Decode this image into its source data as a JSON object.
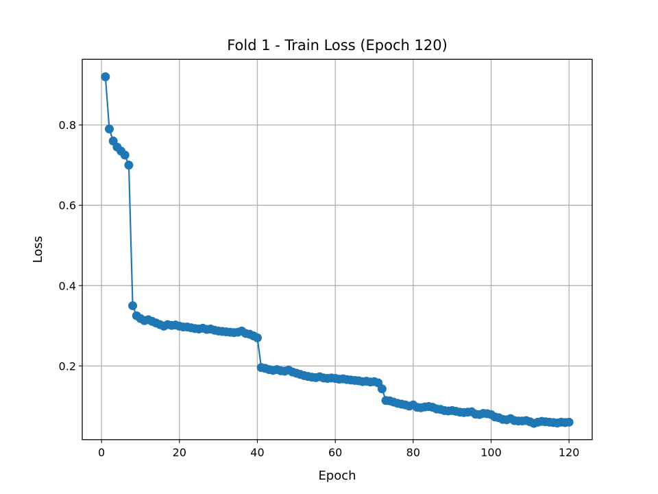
{
  "chart_data": {
    "type": "line",
    "title": "Fold 1 - Train Loss (Epoch 120)",
    "xlabel": "Epoch",
    "ylabel": "Loss",
    "xlim": [
      -4.95,
      125.95
    ],
    "ylim": [
      0.0165,
      0.9635
    ],
    "x_ticks": [
      0,
      20,
      40,
      60,
      80,
      100,
      120
    ],
    "y_ticks": [
      0.2,
      0.4,
      0.6,
      0.8
    ],
    "grid": true,
    "legend": "none",
    "marker": "circle",
    "color": "#1f77b4",
    "series": [
      {
        "x": [
          1,
          2,
          3,
          4,
          5,
          6,
          7,
          8,
          9,
          10,
          11,
          12,
          13,
          14,
          15,
          16,
          17,
          18,
          19,
          20,
          21,
          22,
          23,
          24,
          25,
          26,
          27,
          28,
          29,
          30,
          31,
          32,
          33,
          34,
          35,
          36,
          37,
          38,
          39,
          40,
          41,
          42,
          43,
          44,
          45,
          46,
          47,
          48,
          49,
          50,
          51,
          52,
          53,
          54,
          55,
          56,
          57,
          58,
          59,
          60,
          61,
          62,
          63,
          64,
          65,
          66,
          67,
          68,
          69,
          70,
          71,
          72,
          73,
          74,
          75,
          76,
          77,
          78,
          79,
          80,
          81,
          82,
          83,
          84,
          85,
          86,
          87,
          88,
          89,
          90,
          91,
          92,
          93,
          94,
          95,
          96,
          97,
          98,
          99,
          100,
          101,
          102,
          103,
          104,
          105,
          106,
          107,
          108,
          109,
          110,
          111,
          112,
          113,
          114,
          115,
          116,
          117,
          118,
          119,
          120
        ],
        "values": [
          0.92,
          0.79,
          0.76,
          0.745,
          0.735,
          0.725,
          0.7,
          0.35,
          0.325,
          0.318,
          0.313,
          0.315,
          0.311,
          0.307,
          0.303,
          0.299,
          0.303,
          0.301,
          0.302,
          0.299,
          0.297,
          0.297,
          0.295,
          0.293,
          0.292,
          0.294,
          0.291,
          0.292,
          0.289,
          0.287,
          0.286,
          0.285,
          0.284,
          0.283,
          0.284,
          0.287,
          0.281,
          0.279,
          0.275,
          0.27,
          0.196,
          0.194,
          0.191,
          0.189,
          0.191,
          0.188,
          0.187,
          0.19,
          0.185,
          0.182,
          0.179,
          0.176,
          0.174,
          0.172,
          0.171,
          0.173,
          0.17,
          0.169,
          0.17,
          0.169,
          0.167,
          0.168,
          0.166,
          0.165,
          0.164,
          0.163,
          0.161,
          0.162,
          0.16,
          0.161,
          0.158,
          0.143,
          0.114,
          0.113,
          0.11,
          0.107,
          0.105,
          0.103,
          0.1,
          0.103,
          0.097,
          0.096,
          0.098,
          0.099,
          0.097,
          0.093,
          0.092,
          0.089,
          0.088,
          0.089,
          0.087,
          0.085,
          0.084,
          0.085,
          0.086,
          0.08,
          0.079,
          0.082,
          0.081,
          0.079,
          0.073,
          0.071,
          0.067,
          0.066,
          0.069,
          0.064,
          0.063,
          0.063,
          0.064,
          0.061,
          0.057,
          0.06,
          0.062,
          0.061,
          0.06,
          0.059,
          0.058,
          0.06,
          0.059,
          0.06
        ]
      }
    ]
  }
}
